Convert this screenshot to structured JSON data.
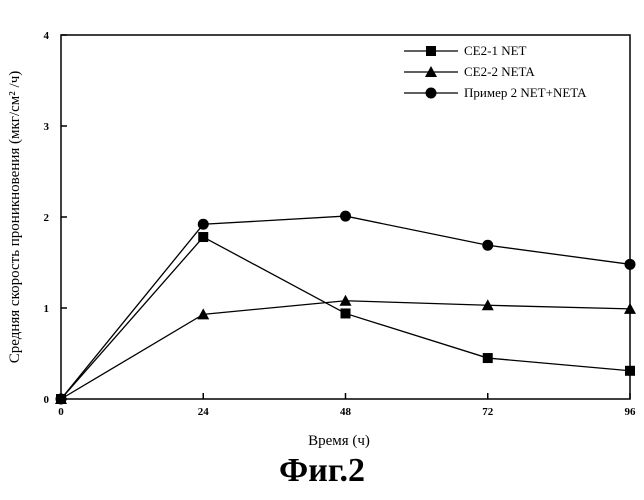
{
  "figure": {
    "caption": "Фиг.2"
  },
  "chart_data": {
    "type": "line",
    "xlabel": "Время (ч)",
    "ylabel": "Средняя скорость проникновения (мкг/см² /ч)",
    "xlim": [
      0,
      96
    ],
    "ylim": [
      0,
      4
    ],
    "xticks": [
      0,
      24,
      48,
      72,
      96
    ],
    "yticks": [
      0,
      1,
      2,
      3,
      4
    ],
    "grid": false,
    "legend_position": "top-right",
    "series": [
      {
        "name": "CE2-1 NET",
        "marker": "square",
        "x": [
          0,
          24,
          48,
          72,
          96
        ],
        "y": [
          0,
          1.78,
          0.94,
          0.45,
          0.31
        ]
      },
      {
        "name": "CE2-2 NETA",
        "marker": "triangle",
        "x": [
          0,
          24,
          48,
          72,
          96
        ],
        "y": [
          0,
          0.93,
          1.08,
          1.03,
          0.99
        ]
      },
      {
        "name": "Пример 2 NET+NETA",
        "marker": "circle",
        "x": [
          0,
          24,
          48,
          72,
          96
        ],
        "y": [
          0,
          1.92,
          2.01,
          1.69,
          1.48
        ]
      }
    ]
  }
}
